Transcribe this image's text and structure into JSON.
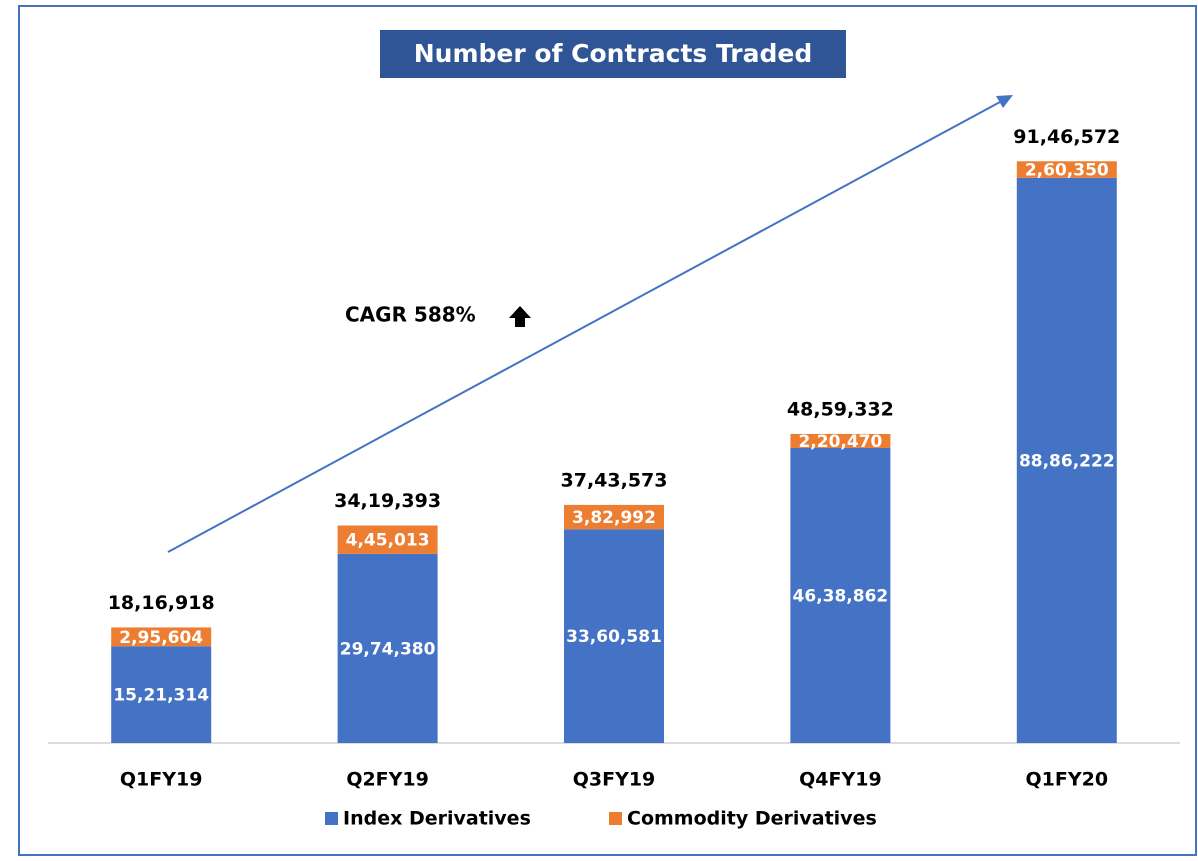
{
  "chart_data": {
    "type": "stacked_bar",
    "title": "Number of Contracts  Traded",
    "annotation": "CAGR 588%",
    "categories": [
      "Q1FY19",
      "Q2FY19",
      "Q3FY19",
      "Q4FY19",
      "Q1FY20"
    ],
    "series": [
      {
        "name": "Index Derivatives",
        "color": "#4472c4",
        "values": [
          1521314,
          2974380,
          3360581,
          4638862,
          8886222
        ],
        "value_labels": [
          "15,21,314",
          "29,74,380",
          "33,60,581",
          "46,38,862",
          "88,86,222"
        ]
      },
      {
        "name": "Commodity Derivatives",
        "color": "#ed7d31",
        "values": [
          295604,
          445013,
          382992,
          220470,
          260350
        ],
        "value_labels": [
          "2,95,604",
          "4,45,013",
          "3,82,992",
          "2,20,470",
          "2,60,350"
        ]
      }
    ],
    "total_labels": [
      "18,16,918",
      "34,19,393",
      "37,43,573",
      "48,59,332",
      "91,46,572"
    ],
    "ylim": [
      0,
      10000000
    ]
  }
}
